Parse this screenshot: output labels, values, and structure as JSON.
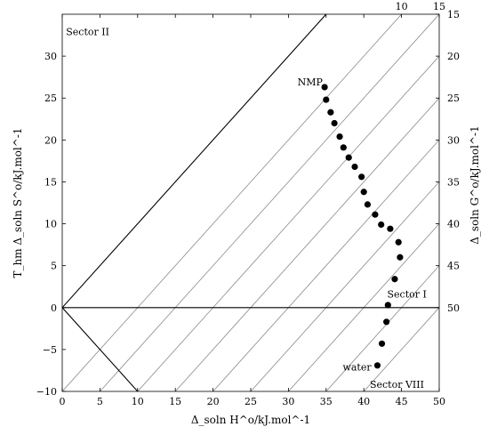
{
  "chart_data": {
    "type": "scatter",
    "xlabel": "Δ_soln H^o/kJ.mol^-1",
    "ylabel": "T_hm Δ_soln S^o/kJ.mol^-1",
    "y2label": "Δ_soln G^o/kJ.mol^-1",
    "xlim": [
      0,
      50
    ],
    "ylim": [
      -10,
      35
    ],
    "x_ticks": [
      0,
      5,
      10,
      15,
      20,
      25,
      30,
      35,
      40,
      45,
      50
    ],
    "y_ticks": [
      -10,
      -5,
      0,
      5,
      10,
      15,
      20,
      25,
      30
    ],
    "g_ticks_right": [
      15,
      20,
      25,
      30,
      35,
      40,
      45,
      50
    ],
    "g_ticks_top": [
      10,
      15
    ],
    "iso_g_lines": [
      10,
      15,
      20,
      25,
      30,
      35,
      40,
      45,
      50
    ],
    "reference_lines": [
      {
        "name": "y=x",
        "points": [
          [
            0,
            0
          ],
          [
            35,
            35
          ]
        ]
      },
      {
        "name": "y=0",
        "points": [
          [
            0,
            0
          ],
          [
            50,
            0
          ]
        ]
      },
      {
        "name": "y=-x",
        "points": [
          [
            0,
            0
          ],
          [
            10,
            -10
          ]
        ]
      }
    ],
    "annotations": [
      {
        "text": "Sector II",
        "x": 0.5,
        "y": 32.5
      },
      {
        "text": "NMP",
        "x": 31.2,
        "y": 26.5
      },
      {
        "text": "Sector I",
        "x": 43.1,
        "y": 1.2
      },
      {
        "text": "water",
        "x": 37.2,
        "y": -7.5
      },
      {
        "text": "Sector VIII",
        "x": 40.8,
        "y": -9.6
      }
    ],
    "points": [
      {
        "x": 34.8,
        "y": 26.3
      },
      {
        "x": 35.0,
        "y": 24.8
      },
      {
        "x": 35.6,
        "y": 23.3
      },
      {
        "x": 36.1,
        "y": 22.0
      },
      {
        "x": 36.8,
        "y": 20.4
      },
      {
        "x": 37.3,
        "y": 19.1
      },
      {
        "x": 38.0,
        "y": 17.9
      },
      {
        "x": 38.8,
        "y": 16.8
      },
      {
        "x": 39.7,
        "y": 15.6
      },
      {
        "x": 40.0,
        "y": 13.8
      },
      {
        "x": 40.5,
        "y": 12.3
      },
      {
        "x": 41.5,
        "y": 11.1
      },
      {
        "x": 42.3,
        "y": 9.9
      },
      {
        "x": 43.5,
        "y": 9.4
      },
      {
        "x": 44.6,
        "y": 7.8
      },
      {
        "x": 44.8,
        "y": 6.0
      },
      {
        "x": 44.1,
        "y": 3.4
      },
      {
        "x": 43.2,
        "y": 0.3
      },
      {
        "x": 43.0,
        "y": -1.7
      },
      {
        "x": 42.4,
        "y": -4.3
      },
      {
        "x": 41.8,
        "y": -6.9
      }
    ]
  }
}
